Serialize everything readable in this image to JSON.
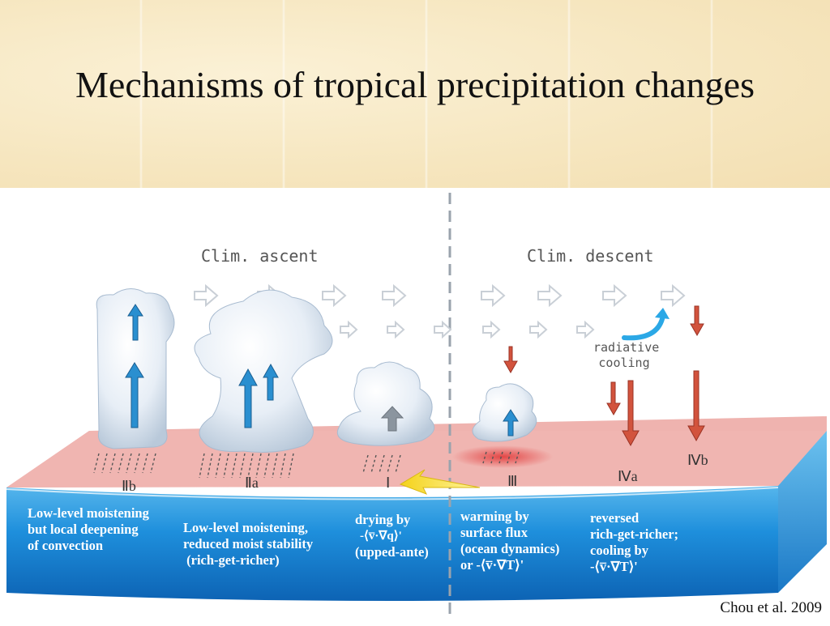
{
  "title": "Mechanisms of tropical precipitation changes",
  "header_labels": {
    "left": "Clim. ascent",
    "right": "Clim. descent"
  },
  "radiative_label": [
    "radiative",
    "cooling"
  ],
  "regions": [
    "Ⅱb",
    "Ⅱa",
    "Ⅰ",
    "Ⅲ",
    "Ⅳa",
    "Ⅳb"
  ],
  "captions": {
    "IIb": [
      "Low-level moistening",
      "but local deepening",
      "of convection"
    ],
    "IIa": [
      "Low-level moistening,",
      "reduced moist stability",
      " (rich-get-richer)"
    ],
    "I": [
      "drying by",
      "-⟨v̅·∇q⟩'",
      "(upped-ante)"
    ],
    "III": [
      "warming by",
      "surface flux",
      "(ocean dynamics)",
      "or -⟨v̅·∇T⟩'"
    ],
    "IVa": [
      "reversed",
      "rich-get-richer;",
      "cooling by",
      "-⟨v̅·∇T⟩'"
    ]
  },
  "credit": "Chou et al. 2009",
  "colors": {
    "header_bg": "#f6e6bf",
    "ocean": "#1d86d6",
    "surface": "#f0b4b0",
    "up_arrow": "#2a8fd0",
    "down_arrow": "#d2533d"
  }
}
